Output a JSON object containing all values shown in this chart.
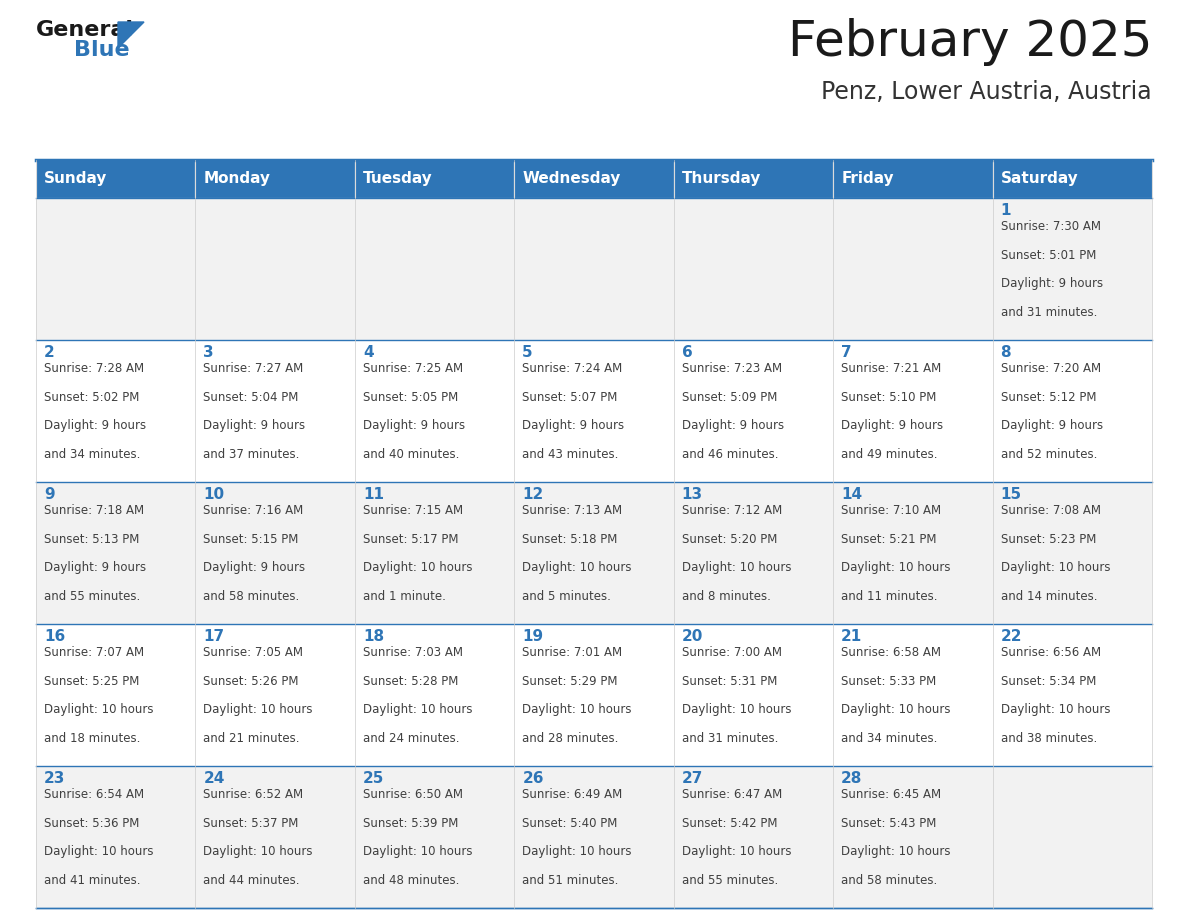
{
  "title": "February 2025",
  "subtitle": "Penz, Lower Austria, Austria",
  "header_bg": "#2E75B6",
  "header_text_color": "#FFFFFF",
  "cell_bg_odd": "#F2F2F2",
  "cell_bg_even": "#FFFFFF",
  "border_color": "#2E75B6",
  "text_color": "#404040",
  "day_num_color": "#2E75B6",
  "day_headers": [
    "Sunday",
    "Monday",
    "Tuesday",
    "Wednesday",
    "Thursday",
    "Friday",
    "Saturday"
  ],
  "calendar_data": [
    [
      {
        "day": null,
        "sunrise": null,
        "sunset": null,
        "daylight": null
      },
      {
        "day": null,
        "sunrise": null,
        "sunset": null,
        "daylight": null
      },
      {
        "day": null,
        "sunrise": null,
        "sunset": null,
        "daylight": null
      },
      {
        "day": null,
        "sunrise": null,
        "sunset": null,
        "daylight": null
      },
      {
        "day": null,
        "sunrise": null,
        "sunset": null,
        "daylight": null
      },
      {
        "day": null,
        "sunrise": null,
        "sunset": null,
        "daylight": null
      },
      {
        "day": 1,
        "sunrise": "7:30 AM",
        "sunset": "5:01 PM",
        "daylight": "9 hours\nand 31 minutes."
      }
    ],
    [
      {
        "day": 2,
        "sunrise": "7:28 AM",
        "sunset": "5:02 PM",
        "daylight": "9 hours\nand 34 minutes."
      },
      {
        "day": 3,
        "sunrise": "7:27 AM",
        "sunset": "5:04 PM",
        "daylight": "9 hours\nand 37 minutes."
      },
      {
        "day": 4,
        "sunrise": "7:25 AM",
        "sunset": "5:05 PM",
        "daylight": "9 hours\nand 40 minutes."
      },
      {
        "day": 5,
        "sunrise": "7:24 AM",
        "sunset": "5:07 PM",
        "daylight": "9 hours\nand 43 minutes."
      },
      {
        "day": 6,
        "sunrise": "7:23 AM",
        "sunset": "5:09 PM",
        "daylight": "9 hours\nand 46 minutes."
      },
      {
        "day": 7,
        "sunrise": "7:21 AM",
        "sunset": "5:10 PM",
        "daylight": "9 hours\nand 49 minutes."
      },
      {
        "day": 8,
        "sunrise": "7:20 AM",
        "sunset": "5:12 PM",
        "daylight": "9 hours\nand 52 minutes."
      }
    ],
    [
      {
        "day": 9,
        "sunrise": "7:18 AM",
        "sunset": "5:13 PM",
        "daylight": "9 hours\nand 55 minutes."
      },
      {
        "day": 10,
        "sunrise": "7:16 AM",
        "sunset": "5:15 PM",
        "daylight": "9 hours\nand 58 minutes."
      },
      {
        "day": 11,
        "sunrise": "7:15 AM",
        "sunset": "5:17 PM",
        "daylight": "10 hours\nand 1 minute."
      },
      {
        "day": 12,
        "sunrise": "7:13 AM",
        "sunset": "5:18 PM",
        "daylight": "10 hours\nand 5 minutes."
      },
      {
        "day": 13,
        "sunrise": "7:12 AM",
        "sunset": "5:20 PM",
        "daylight": "10 hours\nand 8 minutes."
      },
      {
        "day": 14,
        "sunrise": "7:10 AM",
        "sunset": "5:21 PM",
        "daylight": "10 hours\nand 11 minutes."
      },
      {
        "day": 15,
        "sunrise": "7:08 AM",
        "sunset": "5:23 PM",
        "daylight": "10 hours\nand 14 minutes."
      }
    ],
    [
      {
        "day": 16,
        "sunrise": "7:07 AM",
        "sunset": "5:25 PM",
        "daylight": "10 hours\nand 18 minutes."
      },
      {
        "day": 17,
        "sunrise": "7:05 AM",
        "sunset": "5:26 PM",
        "daylight": "10 hours\nand 21 minutes."
      },
      {
        "day": 18,
        "sunrise": "7:03 AM",
        "sunset": "5:28 PM",
        "daylight": "10 hours\nand 24 minutes."
      },
      {
        "day": 19,
        "sunrise": "7:01 AM",
        "sunset": "5:29 PM",
        "daylight": "10 hours\nand 28 minutes."
      },
      {
        "day": 20,
        "sunrise": "7:00 AM",
        "sunset": "5:31 PM",
        "daylight": "10 hours\nand 31 minutes."
      },
      {
        "day": 21,
        "sunrise": "6:58 AM",
        "sunset": "5:33 PM",
        "daylight": "10 hours\nand 34 minutes."
      },
      {
        "day": 22,
        "sunrise": "6:56 AM",
        "sunset": "5:34 PM",
        "daylight": "10 hours\nand 38 minutes."
      }
    ],
    [
      {
        "day": 23,
        "sunrise": "6:54 AM",
        "sunset": "5:36 PM",
        "daylight": "10 hours\nand 41 minutes."
      },
      {
        "day": 24,
        "sunrise": "6:52 AM",
        "sunset": "5:37 PM",
        "daylight": "10 hours\nand 44 minutes."
      },
      {
        "day": 25,
        "sunrise": "6:50 AM",
        "sunset": "5:39 PM",
        "daylight": "10 hours\nand 48 minutes."
      },
      {
        "day": 26,
        "sunrise": "6:49 AM",
        "sunset": "5:40 PM",
        "daylight": "10 hours\nand 51 minutes."
      },
      {
        "day": 27,
        "sunrise": "6:47 AM",
        "sunset": "5:42 PM",
        "daylight": "10 hours\nand 55 minutes."
      },
      {
        "day": 28,
        "sunrise": "6:45 AM",
        "sunset": "5:43 PM",
        "daylight": "10 hours\nand 58 minutes."
      },
      {
        "day": null,
        "sunrise": null,
        "sunset": null,
        "daylight": null
      }
    ]
  ]
}
